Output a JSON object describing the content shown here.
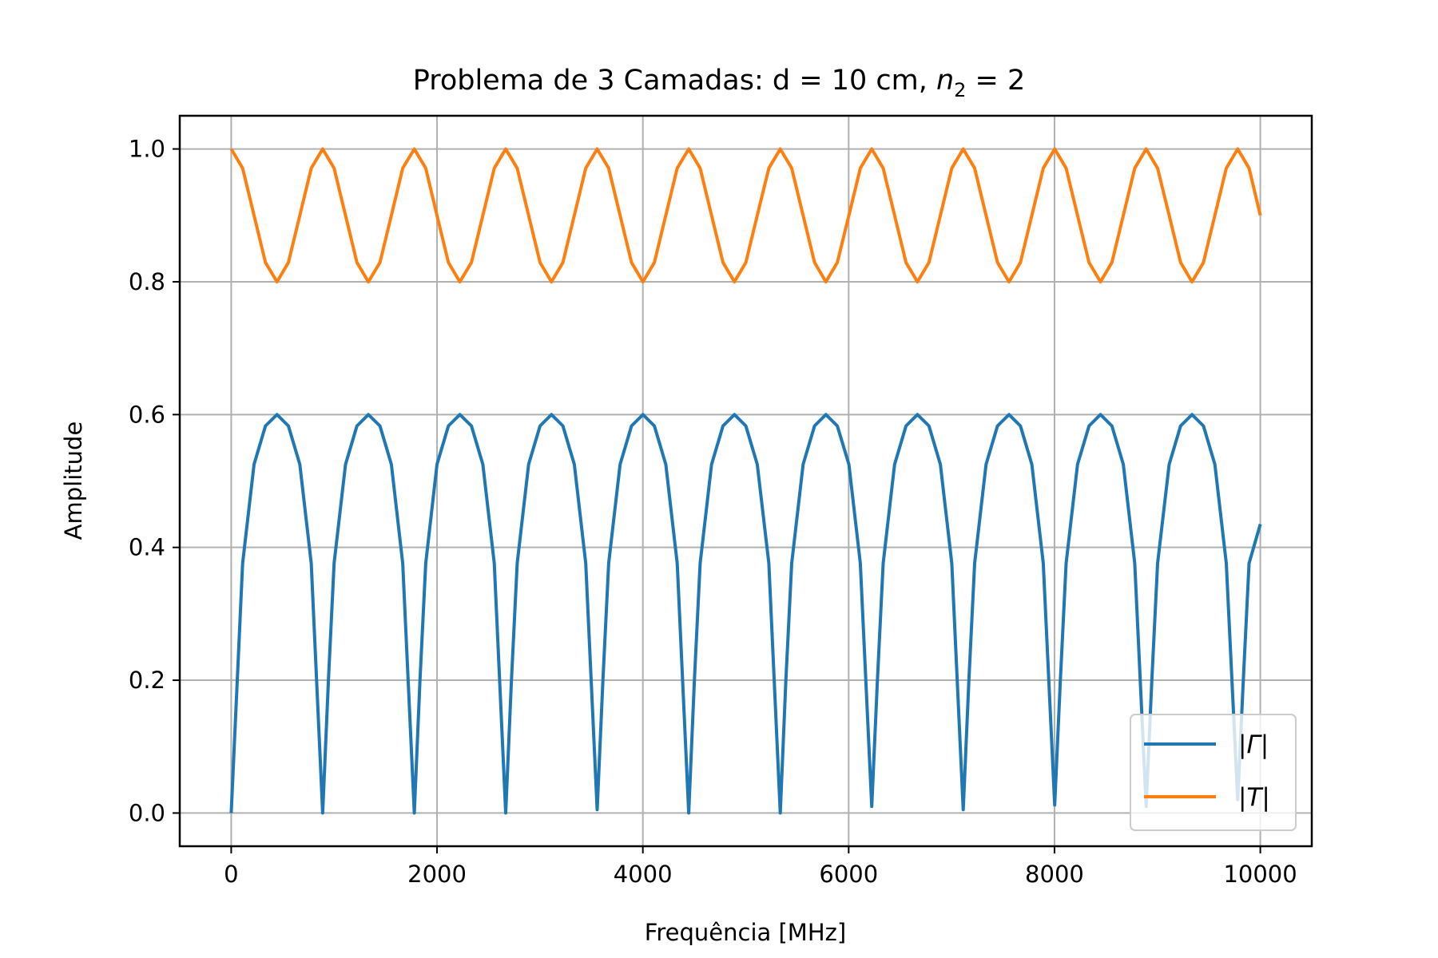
{
  "chart_data": {
    "type": "line",
    "title_prefix": "Problema de 3 Camadas: d = 10 cm, ",
    "title_math_var": "n",
    "title_math_sub": "2",
    "title_math_rest": " = 2",
    "xlabel": "Frequência [MHz]",
    "ylabel": "Amplitude",
    "xlim": [
      -500,
      10500
    ],
    "ylim": [
      -0.05,
      1.05
    ],
    "xticks": [
      0,
      2000,
      4000,
      6000,
      8000,
      10000
    ],
    "xtick_labels": [
      "0",
      "2000",
      "4000",
      "6000",
      "8000",
      "10000"
    ],
    "yticks": [
      0.0,
      0.2,
      0.4,
      0.6,
      0.8,
      1.0
    ],
    "ytick_labels": [
      "0.0",
      "0.2",
      "0.4",
      "0.6",
      "0.8",
      "1.0"
    ],
    "grid": true,
    "legend_placement": "lower-right",
    "series": [
      {
        "name": "|Γ|",
        "legend_pre": "|",
        "legend_var": "Γ",
        "legend_post": "|",
        "color": "#1f77b4",
        "x": [
          0,
          111,
          222,
          333,
          445,
          556,
          667,
          778,
          889,
          945,
          1000,
          1111,
          1222,
          1333,
          1445,
          1556,
          1667,
          1779,
          1834,
          1890,
          2000,
          2111,
          2222,
          2334,
          2445,
          2556,
          2667,
          2723,
          2779,
          2890,
          3001,
          3112,
          3223,
          3334,
          3445,
          3556,
          3612,
          3668,
          3779,
          3890,
          4001,
          4112,
          4223,
          4334,
          4446,
          4501,
          4557,
          4668,
          4779,
          4890,
          5001,
          5112,
          5224,
          5335,
          5390,
          5446,
          5557,
          5668,
          5779,
          5890,
          6002,
          6113,
          6224,
          6279,
          6335,
          6446,
          6557,
          6668,
          6780,
          6891,
          7002,
          7113,
          7168,
          7224,
          7335,
          7446,
          7558,
          7669,
          7780,
          7891,
          8002,
          8057,
          8113,
          8224,
          8336,
          8447,
          8558,
          8669,
          8780,
          8891,
          8946,
          9002,
          9114,
          9225,
          9336,
          9447,
          9558,
          9669,
          9780,
          9835,
          9891,
          10000
        ],
        "y": [
          0.0,
          0.376,
          0.525,
          0.583,
          0.6,
          0.583,
          0.525,
          0.376,
          0.0,
          0.2,
          0.376,
          0.525,
          0.583,
          0.6,
          0.583,
          0.525,
          0.376,
          0.0,
          0.2,
          0.376,
          0.525,
          0.583,
          0.6,
          0.583,
          0.525,
          0.376,
          0.0,
          0.2,
          0.376,
          0.525,
          0.583,
          0.6,
          0.583,
          0.525,
          0.376,
          0.005,
          0.2,
          0.376,
          0.525,
          0.583,
          0.6,
          0.583,
          0.525,
          0.376,
          0.0,
          0.2,
          0.376,
          0.525,
          0.583,
          0.6,
          0.583,
          0.525,
          0.376,
          0.0,
          0.2,
          0.376,
          0.525,
          0.583,
          0.6,
          0.583,
          0.525,
          0.376,
          0.01,
          0.2,
          0.376,
          0.525,
          0.583,
          0.6,
          0.583,
          0.525,
          0.376,
          0.005,
          0.2,
          0.376,
          0.525,
          0.583,
          0.6,
          0.583,
          0.525,
          0.376,
          0.012,
          0.2,
          0.376,
          0.525,
          0.583,
          0.6,
          0.583,
          0.525,
          0.376,
          0.01,
          0.2,
          0.376,
          0.525,
          0.583,
          0.6,
          0.583,
          0.525,
          0.376,
          0.02,
          0.2,
          0.376,
          0.435
        ]
      },
      {
        "name": "|T|",
        "legend_pre": "|",
        "legend_var": "T",
        "legend_post": "|",
        "color": "#ff7f0e",
        "x": [
          0,
          111,
          222,
          333,
          445,
          556,
          667,
          778,
          889,
          1000,
          1111,
          1222,
          1333,
          1445,
          1556,
          1667,
          1779,
          1890,
          2000,
          2111,
          2222,
          2334,
          2445,
          2556,
          2667,
          2779,
          2890,
          3001,
          3112,
          3223,
          3334,
          3445,
          3556,
          3668,
          3779,
          3890,
          4001,
          4112,
          4223,
          4334,
          4446,
          4557,
          4668,
          4779,
          4890,
          5001,
          5112,
          5224,
          5335,
          5446,
          5557,
          5668,
          5779,
          5890,
          6002,
          6113,
          6224,
          6335,
          6446,
          6557,
          6668,
          6780,
          6891,
          7002,
          7113,
          7224,
          7335,
          7446,
          7558,
          7669,
          7780,
          7891,
          8002,
          8113,
          8224,
          8336,
          8447,
          8558,
          8669,
          8780,
          8891,
          9002,
          9114,
          9225,
          9336,
          9447,
          9558,
          9669,
          9780,
          9891,
          10000
        ],
        "y": [
          1.0,
          0.971,
          0.9,
          0.829,
          0.8,
          0.829,
          0.9,
          0.971,
          1.0,
          0.971,
          0.9,
          0.829,
          0.8,
          0.829,
          0.9,
          0.971,
          1.0,
          0.971,
          0.9,
          0.829,
          0.8,
          0.829,
          0.9,
          0.971,
          1.0,
          0.971,
          0.9,
          0.829,
          0.8,
          0.829,
          0.9,
          0.971,
          1.0,
          0.971,
          0.9,
          0.829,
          0.8,
          0.829,
          0.9,
          0.971,
          1.0,
          0.971,
          0.9,
          0.829,
          0.8,
          0.829,
          0.9,
          0.971,
          1.0,
          0.971,
          0.9,
          0.829,
          0.8,
          0.829,
          0.9,
          0.971,
          1.0,
          0.971,
          0.9,
          0.829,
          0.8,
          0.829,
          0.9,
          0.971,
          1.0,
          0.971,
          0.9,
          0.829,
          0.8,
          0.829,
          0.9,
          0.971,
          1.0,
          0.971,
          0.9,
          0.829,
          0.8,
          0.829,
          0.9,
          0.971,
          1.0,
          0.971,
          0.9,
          0.829,
          0.8,
          0.829,
          0.9,
          0.971,
          1.0,
          0.971,
          0.9
        ]
      }
    ]
  }
}
